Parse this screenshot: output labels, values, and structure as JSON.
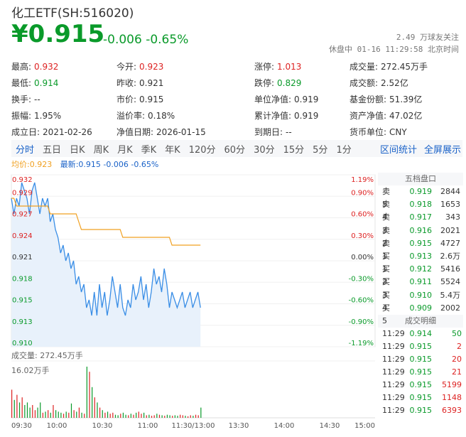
{
  "header": {
    "title": "化工ETF(SH:516020)",
    "price": "¥0.915",
    "change": "-0.006 -0.65%",
    "followers": "2.49 万球友关注",
    "status": "休盘中 01-16 11:29:58 北京时间"
  },
  "stats": [
    [
      {
        "k": "最高:",
        "v": "0.932",
        "c": "red"
      },
      {
        "k": "今开:",
        "v": "0.923",
        "c": "red"
      },
      {
        "k": "涨停:",
        "v": "1.013",
        "c": "red"
      },
      {
        "k": "成交量:",
        "v": "272.45万手",
        "c": ""
      }
    ],
    [
      {
        "k": "最低:",
        "v": "0.914",
        "c": "green"
      },
      {
        "k": "昨收:",
        "v": "0.921",
        "c": ""
      },
      {
        "k": "跌停:",
        "v": "0.829",
        "c": "green"
      },
      {
        "k": "成交额:",
        "v": "2.52亿",
        "c": ""
      }
    ],
    [
      {
        "k": "换手:",
        "v": "--",
        "c": ""
      },
      {
        "k": "市价:",
        "v": "0.915",
        "c": ""
      },
      {
        "k": "单位净值:",
        "v": "0.919",
        "c": ""
      },
      {
        "k": "基金份额:",
        "v": "51.39亿",
        "c": ""
      }
    ],
    [
      {
        "k": "振幅:",
        "v": "1.95%",
        "c": ""
      },
      {
        "k": "溢价率:",
        "v": "0.18%",
        "c": ""
      },
      {
        "k": "累计净值:",
        "v": "0.919",
        "c": ""
      },
      {
        "k": "资产净值:",
        "v": "47.02亿",
        "c": ""
      }
    ],
    [
      {
        "k": "成立日:",
        "v": "2021-02-26",
        "c": ""
      },
      {
        "k": "净值日期:",
        "v": "2026-01-15",
        "c": ""
      },
      {
        "k": "到期日:",
        "v": "--",
        "c": ""
      },
      {
        "k": "货币单位:",
        "v": "CNY",
        "c": ""
      }
    ]
  ],
  "tabs": [
    "分时",
    "五日",
    "日K",
    "周K",
    "月K",
    "季K",
    "年K",
    "120分",
    "60分",
    "30分",
    "15分",
    "5分",
    "1分"
  ],
  "tab_actions": [
    "区间统计",
    "全屏展示"
  ],
  "legend": {
    "avg": "均价:0.923",
    "latest": "最新:0.915 -0.006 -0.65%"
  },
  "colors": {
    "up": "#d22",
    "down": "#0a9a2a",
    "price_line": "#3a8ee6",
    "avg_line": "#f0a020",
    "accent": "#1a62c8"
  },
  "order_book": {
    "title": "五档盘口",
    "asks": [
      {
        "l": "卖5",
        "p": "0.919",
        "q": "2844"
      },
      {
        "l": "卖4",
        "p": "0.918",
        "q": "1653"
      },
      {
        "l": "卖3",
        "p": "0.917",
        "q": "343"
      },
      {
        "l": "卖2",
        "p": "0.916",
        "q": "2021"
      },
      {
        "l": "卖1",
        "p": "0.915",
        "q": "4727"
      }
    ],
    "bids": [
      {
        "l": "买1",
        "p": "0.913",
        "q": "2.6万"
      },
      {
        "l": "买2",
        "p": "0.912",
        "q": "5416"
      },
      {
        "l": "买3",
        "p": "0.911",
        "q": "5524"
      },
      {
        "l": "买4",
        "p": "0.910",
        "q": "5.4万"
      },
      {
        "l": "买5",
        "p": "0.909",
        "q": "2002"
      }
    ]
  },
  "deals": {
    "title": "成交明细",
    "rows": [
      {
        "t": "11:29",
        "p": "0.914",
        "q": "50",
        "c": "green"
      },
      {
        "t": "11:29",
        "p": "0.915",
        "q": "2",
        "c": "red"
      },
      {
        "t": "11:29",
        "p": "0.915",
        "q": "20",
        "c": "red"
      },
      {
        "t": "11:29",
        "p": "0.915",
        "q": "21",
        "c": "red"
      },
      {
        "t": "11:29",
        "p": "0.915",
        "q": "5199",
        "c": "red"
      },
      {
        "t": "11:29",
        "p": "0.915",
        "q": "1148",
        "c": "red"
      },
      {
        "t": "11:29",
        "p": "0.915",
        "q": "6393",
        "c": "red"
      }
    ]
  },
  "volume": {
    "label": "成交量: 272.45万手",
    "max": "16.02万手"
  },
  "chart_data": {
    "type": "line",
    "y_ticks_left": [
      "0.932",
      "0.929",
      "0.927",
      "0.924",
      "0.921",
      "0.918",
      "0.915",
      "0.913",
      "0.910"
    ],
    "y_ticks_right": [
      "1.19%",
      "0.90%",
      "0.60%",
      "0.30%",
      "0.00%",
      "-0.30%",
      "-0.60%",
      "-0.90%",
      "-1.19%"
    ],
    "x_ticks": [
      "09:30",
      "10:00",
      "10:30",
      "11:00",
      "11:30/13:00",
      "13:30",
      "14:00",
      "14:30",
      "15:00"
    ],
    "ylim": [
      0.91,
      0.932
    ],
    "series": [
      {
        "name": "最新",
        "values": [
          0.929,
          0.927,
          0.929,
          0.928,
          0.931,
          0.93,
          0.929,
          0.927,
          0.93,
          0.931,
          0.929,
          0.927,
          0.929,
          0.928,
          0.929,
          0.926,
          0.927,
          0.925,
          0.924,
          0.922,
          0.923,
          0.921,
          0.922,
          0.92,
          0.921,
          0.918,
          0.919,
          0.917,
          0.918,
          0.915,
          0.916,
          0.914,
          0.917,
          0.914,
          0.918,
          0.915,
          0.917,
          0.914,
          0.916,
          0.919,
          0.917,
          0.915,
          0.918,
          0.915,
          0.914,
          0.916,
          0.915,
          0.918,
          0.916,
          0.917,
          0.919,
          0.916,
          0.918,
          0.915,
          0.917,
          0.92,
          0.918,
          0.919,
          0.917,
          0.92,
          0.918,
          0.915,
          0.917,
          0.916,
          0.915,
          0.916,
          0.917,
          0.915,
          0.916,
          0.917,
          0.915,
          0.916,
          0.917,
          0.915
        ]
      },
      {
        "name": "均价",
        "values": [
          0.929,
          0.929,
          0.928,
          0.928,
          0.928,
          0.928,
          0.928,
          0.928,
          0.928,
          0.928,
          0.928,
          0.928,
          0.928,
          0.928,
          0.928,
          0.927,
          0.927,
          0.927,
          0.927,
          0.927,
          0.927,
          0.927,
          0.927,
          0.927,
          0.927,
          0.927,
          0.926,
          0.925,
          0.925,
          0.925,
          0.925,
          0.925,
          0.925,
          0.925,
          0.925,
          0.925,
          0.925,
          0.925,
          0.925,
          0.925,
          0.925,
          0.925,
          0.925,
          0.924,
          0.924,
          0.924,
          0.924,
          0.924,
          0.924,
          0.924,
          0.924,
          0.924,
          0.924,
          0.924,
          0.924,
          0.924,
          0.924,
          0.924,
          0.924,
          0.924,
          0.924,
          0.924,
          0.923,
          0.923,
          0.923,
          0.923,
          0.923,
          0.923,
          0.923,
          0.923,
          0.923,
          0.923,
          0.923,
          0.923
        ]
      }
    ],
    "volume_bars": [
      0.55,
      0.35,
      0.45,
      0.3,
      0.4,
      0.25,
      0.3,
      0.2,
      0.25,
      0.15,
      0.2,
      0.3,
      0.1,
      0.12,
      0.15,
      0.1,
      0.25,
      0.15,
      0.12,
      0.1,
      0.08,
      0.12,
      0.1,
      0.28,
      0.15,
      0.12,
      0.2,
      0.1,
      0.08,
      1.0,
      0.9,
      0.6,
      0.4,
      0.3,
      0.2,
      0.15,
      0.1,
      0.12,
      0.08,
      0.1,
      0.06,
      0.05,
      0.08,
      0.1,
      0.06,
      0.05,
      0.08,
      0.06,
      0.1,
      0.12,
      0.08,
      0.1,
      0.05,
      0.06,
      0.04,
      0.05,
      0.08,
      0.06,
      0.05,
      0.04,
      0.06,
      0.05,
      0.04,
      0.05,
      0.04,
      0.06,
      0.05,
      0.04,
      0.03,
      0.05,
      0.04,
      0.06,
      0.05,
      0.2
    ],
    "volume_colors": "mixed red/green"
  }
}
